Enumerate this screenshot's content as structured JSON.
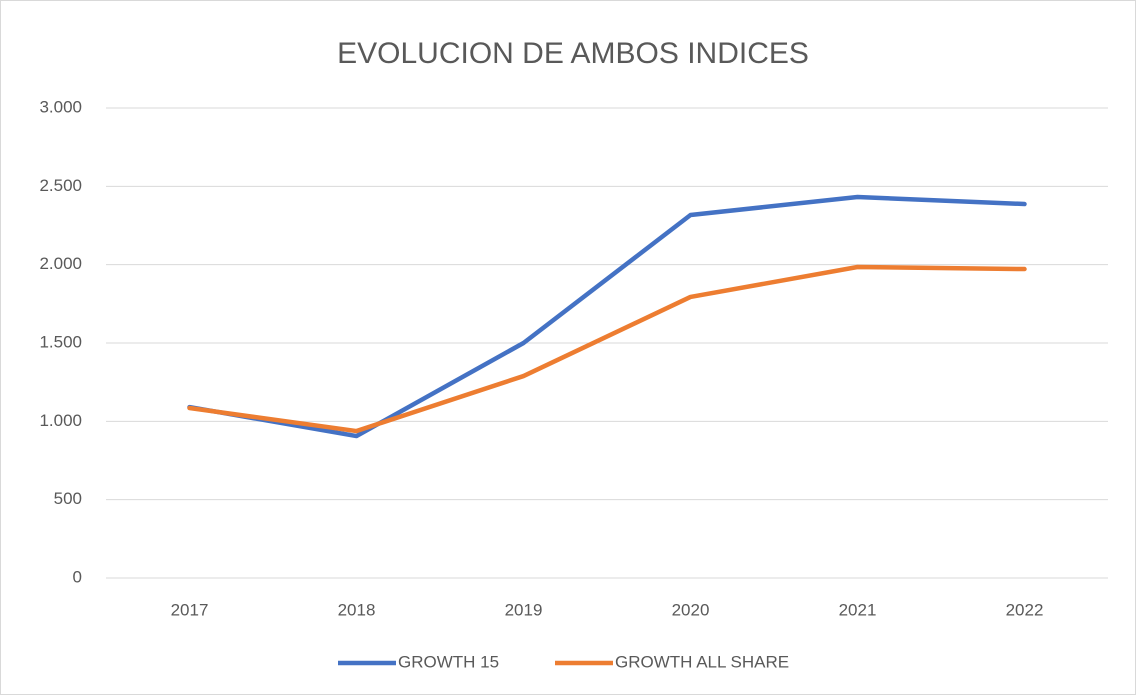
{
  "chart_data": {
    "type": "line",
    "title": "EVOLUCION DE AMBOS INDICES",
    "categories": [
      "2017",
      "2018",
      "2019",
      "2020",
      "2021",
      "2022"
    ],
    "series": [
      {
        "name": "GROWTH 15",
        "color": "#4472c4",
        "values": [
          1091,
          906,
          1500,
          2317,
          2432,
          2387
        ]
      },
      {
        "name": "GROWTH ALL SHARE",
        "color": "#ed7d31",
        "values": [
          1085,
          938,
          1289,
          1794,
          1985,
          1972
        ]
      }
    ],
    "ylim": [
      0,
      3000
    ],
    "yticks": [
      0,
      500,
      {
        "value": 1000,
        "label": "1.000"
      },
      {
        "value": 1500,
        "label": "1.500"
      },
      {
        "value": 2000,
        "label": "2.000"
      },
      {
        "value": 2500,
        "label": "2.500"
      },
      {
        "value": 3000,
        "label": "3.000"
      }
    ],
    "grid": true,
    "legend": "bottom"
  }
}
